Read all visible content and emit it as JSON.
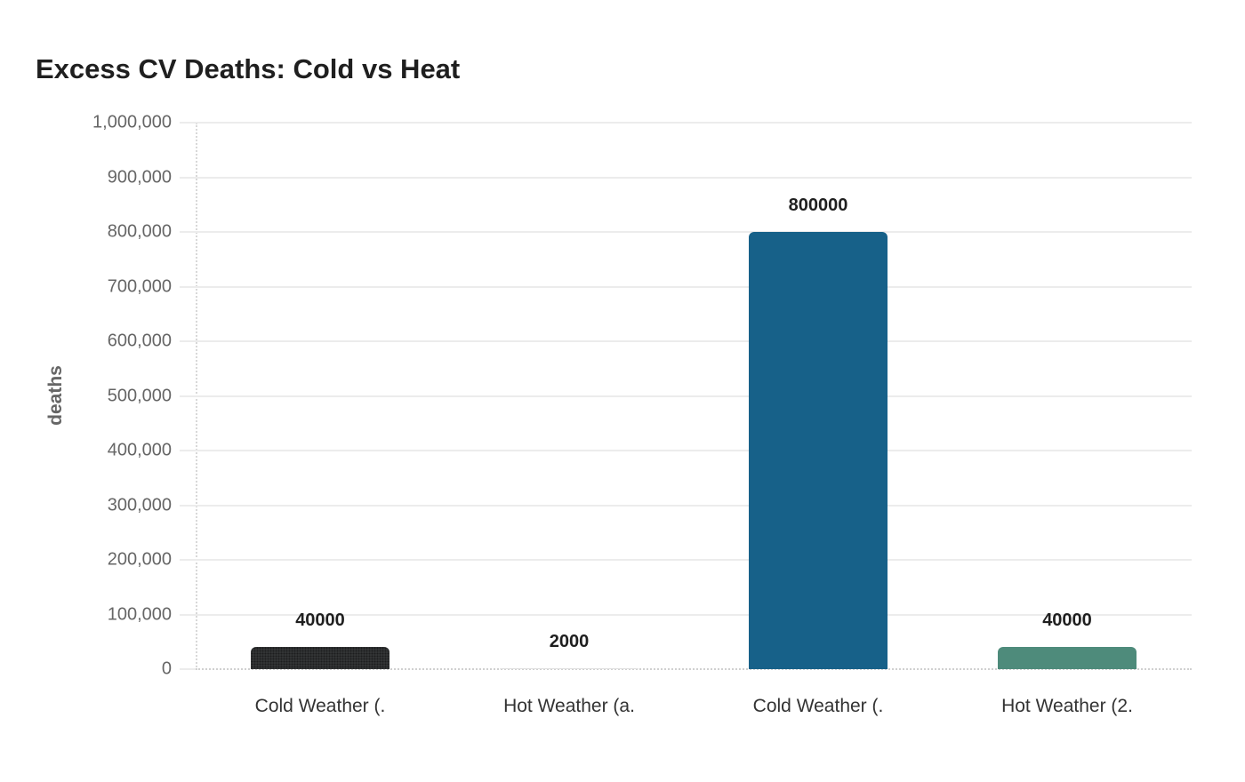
{
  "chart_data": {
    "type": "bar",
    "title": "Excess CV Deaths: Cold vs Heat",
    "xlabel": "",
    "ylabel": "deaths",
    "categories": [
      "Cold Weather (.",
      "Hot Weather (a.",
      "Cold Weather (.",
      "Hot Weather (2."
    ],
    "values": [
      40000,
      2000,
      800000,
      40000
    ],
    "value_labels": [
      "40000",
      "2000",
      "800000",
      "40000"
    ],
    "bar_colors": [
      "#333536",
      "#e0e0e0",
      "#176189",
      "#4e8b7b"
    ],
    "bar_patterns": [
      "dots",
      "none",
      "none",
      "none"
    ],
    "ylim": [
      0,
      1000000
    ],
    "yticks": [
      0,
      100000,
      200000,
      300000,
      400000,
      500000,
      600000,
      700000,
      800000,
      900000,
      1000000
    ],
    "ytick_labels": [
      "0",
      "100,000",
      "200,000",
      "300,000",
      "400,000",
      "500,000",
      "600,000",
      "700,000",
      "800,000",
      "900,000",
      "1,000,000"
    ],
    "grid": true,
    "legend": "none"
  }
}
